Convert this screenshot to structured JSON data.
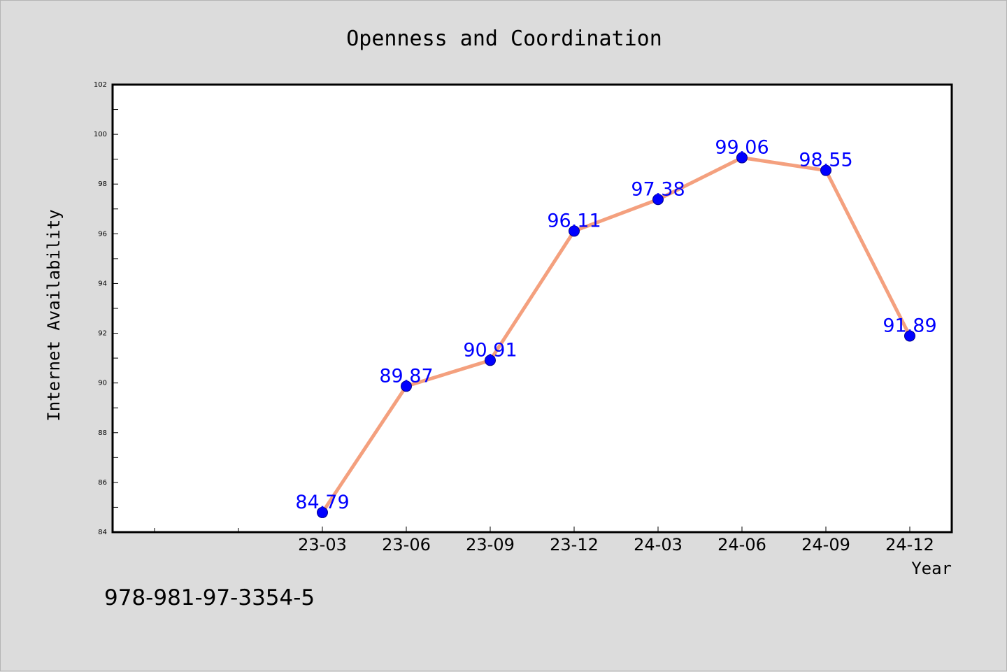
{
  "chart_data": {
    "type": "line",
    "title": "Openness and Coordination",
    "xlabel": "Year",
    "ylabel": "Internet Availability",
    "categories": [
      "23-03",
      "23-06",
      "23-09",
      "23-12",
      "24-03",
      "24-06",
      "24-09",
      "24-12"
    ],
    "series": [
      {
        "values": [
          84.79,
          89.87,
          90.91,
          96.11,
          97.38,
          99.06,
          98.55,
          91.89
        ]
      }
    ],
    "data_labels": [
      "84.79",
      "89.87",
      "90.91",
      "96.11",
      "97.38",
      "99.06",
      "98.55",
      "91.89"
    ],
    "ylim": [
      84,
      102
    ],
    "yticks": [
      "84",
      "86",
      "88",
      "90",
      "92",
      "94",
      "96",
      "98",
      "100",
      "102"
    ],
    "grid": false,
    "line_color": "#f4a07e",
    "marker_color": "#0000ff",
    "label_color": "#0000ff"
  },
  "footer": {
    "isbn": "978-981-97-3354-5"
  }
}
